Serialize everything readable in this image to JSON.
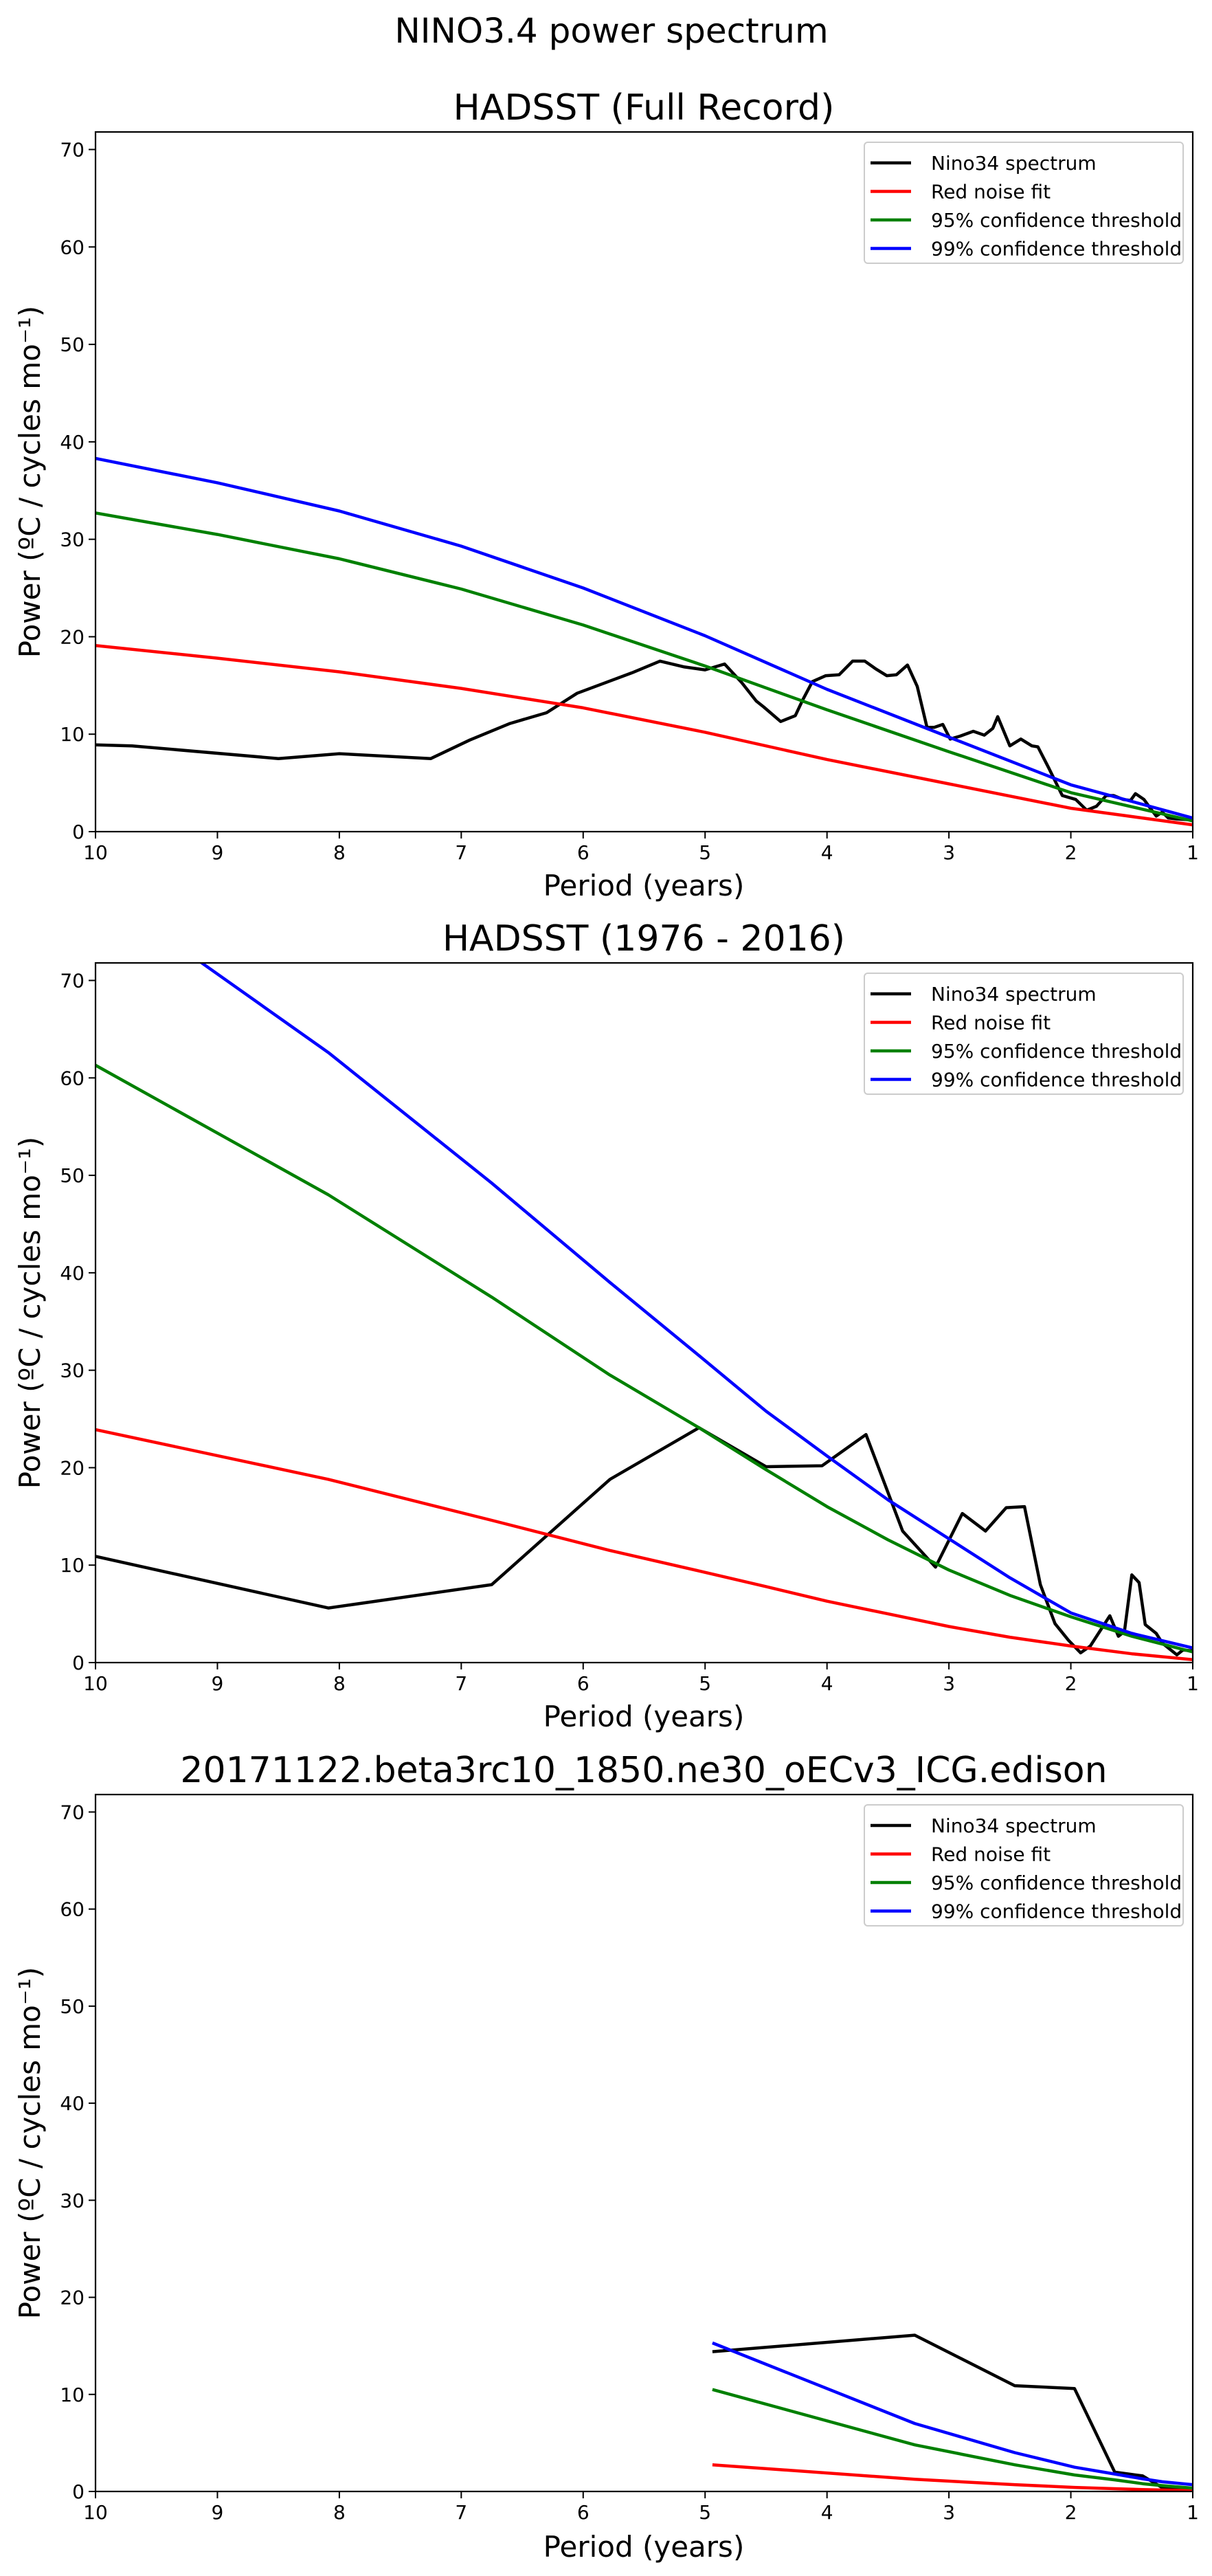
{
  "suptitle": "NINO3.4 power spectrum",
  "legend_entries": [
    {
      "label": "Nino34 spectrum",
      "color": "#000000"
    },
    {
      "label": "Red noise fit",
      "color": "#ff0000"
    },
    {
      "label": "95% confidence threshold",
      "color": "#008000"
    },
    {
      "label": "99% confidence threshold",
      "color": "#0000ff"
    }
  ],
  "chart_data": [
    {
      "type": "line",
      "title": "HADSST (Full Record)",
      "xlabel": "Period (years)",
      "ylabel": "Power (ºC / cycles mo⁻¹)",
      "xlim": [
        10,
        1
      ],
      "ylim": [
        0,
        71.8
      ],
      "xticks": [
        10,
        9,
        8,
        7,
        6,
        5,
        4,
        3,
        2,
        1
      ],
      "yticks": [
        0,
        10,
        20,
        30,
        40,
        50,
        60,
        70
      ],
      "grid": false,
      "legend_position": "top-right",
      "series": [
        {
          "name": "Nino34 spectrum",
          "color": "#000000",
          "x": [
            10,
            9.7,
            8.5,
            8.0,
            7.25,
            6.93,
            6.6,
            6.3,
            6.05,
            5.6,
            5.37,
            5.17,
            5.0,
            4.84,
            4.7,
            4.58,
            4.52,
            4.38,
            4.26,
            4.2,
            4.12,
            4.01,
            3.9,
            3.79,
            3.69,
            3.6,
            3.51,
            3.43,
            3.34,
            3.26,
            3.18,
            3.12,
            3.05,
            2.99,
            2.91,
            2.8,
            2.71,
            2.64,
            2.6,
            2.5,
            2.41,
            2.32,
            2.27,
            2.18,
            2.07,
            1.96,
            1.87,
            1.79,
            1.71,
            1.65,
            1.57,
            1.51,
            1.47,
            1.4,
            1.36,
            1.3,
            1.25,
            1.2,
            1.13,
            1.0
          ],
          "y": [
            8.9,
            8.8,
            7.5,
            8.0,
            7.5,
            9.4,
            11.1,
            12.2,
            14.2,
            16.3,
            17.5,
            16.9,
            16.6,
            17.2,
            15.3,
            13.4,
            12.8,
            11.3,
            11.9,
            13.5,
            15.4,
            16.0,
            16.1,
            17.5,
            17.5,
            16.7,
            16.0,
            16.1,
            17.1,
            14.9,
            10.7,
            10.7,
            11.0,
            9.5,
            9.8,
            10.3,
            9.9,
            10.6,
            11.8,
            8.8,
            9.5,
            8.8,
            8.7,
            6.5,
            3.7,
            3.3,
            2.2,
            2.6,
            3.7,
            3.7,
            3.3,
            3.2,
            3.9,
            3.3,
            2.6,
            1.6,
            2.0,
            1.4,
            1.3,
            1.2
          ]
        },
        {
          "name": "Red noise fit",
          "color": "#ff0000",
          "x": [
            10,
            9,
            8,
            7,
            6,
            5,
            4,
            3,
            2,
            1
          ],
          "y": [
            19.1,
            17.8,
            16.4,
            14.7,
            12.7,
            10.2,
            7.4,
            4.9,
            2.4,
            0.7
          ]
        },
        {
          "name": "95% confidence threshold",
          "color": "#008000",
          "x": [
            10,
            9,
            8,
            7,
            6,
            5,
            4,
            3,
            2,
            1
          ],
          "y": [
            32.7,
            30.5,
            28.0,
            24.9,
            21.2,
            17.0,
            12.5,
            8.2,
            4.0,
            1.1
          ]
        },
        {
          "name": "99% confidence threshold",
          "color": "#0000ff",
          "x": [
            10,
            9,
            8,
            7,
            6,
            5,
            4,
            3,
            2,
            1
          ],
          "y": [
            38.3,
            35.8,
            32.9,
            29.3,
            25.0,
            20.1,
            14.6,
            9.7,
            4.8,
            1.4
          ]
        }
      ]
    },
    {
      "type": "line",
      "title": "HADSST (1976 - 2016)",
      "xlabel": "Period (years)",
      "ylabel": "Power (ºC / cycles mo⁻¹)",
      "xlim": [
        10,
        1
      ],
      "ylim": [
        0,
        71.8
      ],
      "xticks": [
        10,
        9,
        8,
        7,
        6,
        5,
        4,
        3,
        2,
        1
      ],
      "yticks": [
        0,
        10,
        20,
        30,
        40,
        50,
        60,
        70
      ],
      "grid": false,
      "legend_position": "top-right",
      "series": [
        {
          "name": "Nino34 spectrum",
          "color": "#000000",
          "x": [
            10,
            8.09,
            6.75,
            5.78,
            5.05,
            4.5,
            4.04,
            3.68,
            3.38,
            3.11,
            2.89,
            2.7,
            2.53,
            2.38,
            2.25,
            2.13,
            2.02,
            1.92,
            1.84,
            1.68,
            1.61,
            1.56,
            1.5,
            1.44,
            1.39,
            1.3,
            1.25,
            1.13,
            1.08,
            1.0
          ],
          "y": [
            10.9,
            5.6,
            8.0,
            18.8,
            24.1,
            20.1,
            20.2,
            23.4,
            13.5,
            9.8,
            15.3,
            13.5,
            15.9,
            16.0,
            8.0,
            4.0,
            2.3,
            1.0,
            1.7,
            4.8,
            2.7,
            3.2,
            9.0,
            8.2,
            3.9,
            3.0,
            2.0,
            0.8,
            1.3,
            1.2
          ]
        },
        {
          "name": "Red noise fit",
          "color": "#ff0000",
          "x": [
            10,
            8.09,
            6.75,
            5.78,
            5.05,
            4.5,
            4.0,
            3.5,
            3.0,
            2.5,
            2.0,
            1.5,
            1.0
          ],
          "y": [
            23.9,
            18.8,
            14.6,
            11.5,
            9.4,
            7.8,
            6.3,
            5.0,
            3.7,
            2.6,
            1.7,
            0.9,
            0.3
          ]
        },
        {
          "name": "95% confidence threshold",
          "color": "#008000",
          "x": [
            10,
            8.09,
            6.75,
            5.78,
            5.05,
            4.5,
            4.0,
            3.5,
            3.0,
            2.5,
            2.0,
            1.5,
            1.0
          ],
          "y": [
            61.3,
            48.0,
            37.5,
            29.5,
            24.1,
            19.8,
            16.0,
            12.6,
            9.5,
            6.9,
            4.7,
            2.7,
            1.1
          ]
        },
        {
          "name": "99% confidence threshold",
          "color": "#0000ff",
          "x": [
            10,
            9.14,
            8.09,
            6.75,
            5.78,
            5.05,
            4.5,
            4.0,
            3.5,
            3.0,
            2.5,
            2.0,
            1.5,
            1.0
          ],
          "y": [
            78.0,
            71.9,
            62.6,
            49.2,
            39.0,
            31.5,
            25.8,
            21.2,
            16.7,
            12.7,
            8.7,
            5.1,
            3.0,
            1.5
          ]
        }
      ]
    },
    {
      "type": "line",
      "title": "20171122.beta3rc10_1850.ne30_oECv3_ICG.edison",
      "xlabel": "Period (years)",
      "ylabel": "Power (ºC / cycles mo⁻¹)",
      "xlim": [
        10,
        1
      ],
      "ylim": [
        0,
        71.8
      ],
      "xticks": [
        10,
        9,
        8,
        7,
        6,
        5,
        4,
        3,
        2,
        1
      ],
      "yticks": [
        0,
        10,
        20,
        30,
        40,
        50,
        60,
        70
      ],
      "grid": false,
      "legend_position": "top-right",
      "series": [
        {
          "name": "Nino34 spectrum",
          "color": "#000000",
          "x": [
            4.94,
            3.28,
            2.46,
            1.97,
            1.64,
            1.41,
            1.25,
            1.0
          ],
          "y": [
            14.4,
            16.1,
            10.9,
            10.6,
            2.0,
            1.6,
            0.4,
            0.2
          ]
        },
        {
          "name": "Red noise fit",
          "color": "#ff0000",
          "x": [
            4.94,
            3.28,
            2.46,
            1.97,
            1.64,
            1.41,
            1.25,
            1.0
          ],
          "y": [
            2.75,
            1.25,
            0.7,
            0.42,
            0.28,
            0.2,
            0.15,
            0.1
          ]
        },
        {
          "name": "95% confidence threshold",
          "color": "#008000",
          "x": [
            4.94,
            3.28,
            2.46,
            1.97,
            1.64,
            1.41,
            1.25,
            1.0
          ],
          "y": [
            10.5,
            4.8,
            2.75,
            1.7,
            1.2,
            0.8,
            0.6,
            0.35
          ]
        },
        {
          "name": "99% confidence threshold",
          "color": "#0000ff",
          "x": [
            4.94,
            3.28,
            2.46,
            1.97,
            1.64,
            1.41,
            1.25,
            1.0
          ],
          "y": [
            15.3,
            7.0,
            4.0,
            2.5,
            1.8,
            1.3,
            1.0,
            0.7
          ]
        }
      ]
    }
  ]
}
